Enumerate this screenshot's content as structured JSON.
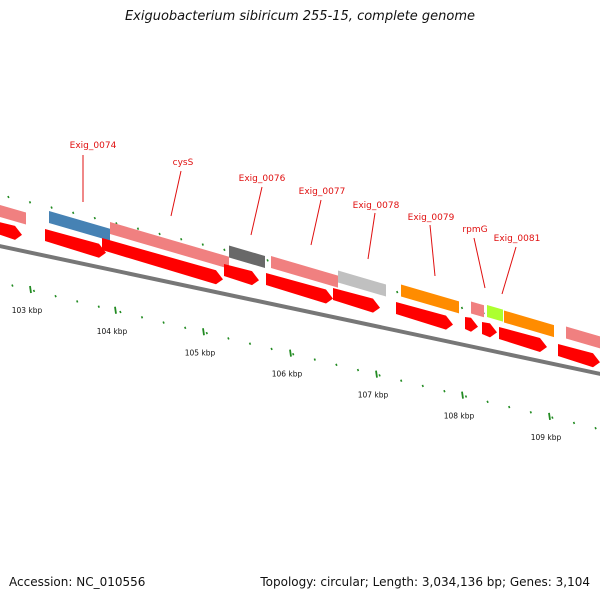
{
  "title": "Exiguobacterium sibiricum 255-15, complete genome",
  "accession": "Accession: NC_010556",
  "summary": "Topology: circular; Length: 3,034,136 bp; Genes: 3,104",
  "colors": {
    "backbone": "#777777",
    "cds": "#ff0000",
    "gene_pink": "#f08080",
    "gene_blue": "#4682b4",
    "gene_dark": "#696969",
    "gene_light": "#c0c0c0",
    "gene_orange": "#ff8c00",
    "gene_green": "#adff2f",
    "label": "#e01010",
    "tick": "#228b22"
  },
  "kbp_labels": [
    "103 kbp",
    "104 kbp",
    "105 kbp",
    "106 kbp",
    "107 kbp",
    "108 kbp",
    "109 kbp"
  ],
  "gene_labels": [
    "Exig_0074",
    "cysS",
    "Exig_0076",
    "Exig_0077",
    "Exig_0078",
    "Exig_0079",
    "rpmG",
    "Exig_0081"
  ]
}
